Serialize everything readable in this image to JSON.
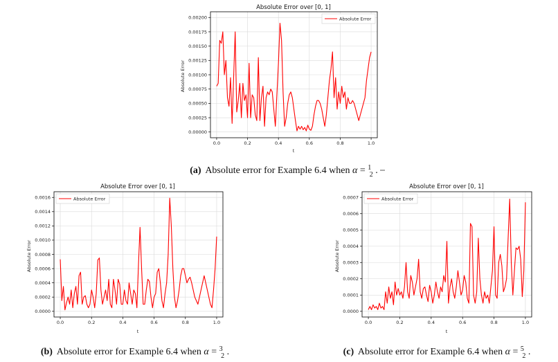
{
  "chart_data": [
    {
      "type": "line",
      "title": "Absolute Error over [0, 1]",
      "xlabel": "t",
      "ylabel": "Absolute Error",
      "xlim": [
        -0.04,
        1.04
      ],
      "ylim": [
        -0.0001,
        0.0021
      ],
      "xticks": [
        0.0,
        0.2,
        0.4,
        0.6,
        0.8,
        1.0
      ],
      "xtick_labels": [
        "0.0",
        "0.2",
        "0.4",
        "0.6",
        "0.8",
        "1.0"
      ],
      "yticks": [
        0,
        0.00025,
        0.0005,
        0.00075,
        0.001,
        0.00125,
        0.0015,
        0.00175,
        0.002
      ],
      "ytick_labels": [
        "0.00000",
        "0.00025",
        "0.00050",
        "0.00075",
        "0.00100",
        "0.00125",
        "0.00150",
        "0.00175",
        "0.00200"
      ],
      "grid": true,
      "legend_position": "top-right",
      "color": "#ff0000",
      "series": [
        {
          "name": "Absolute Error",
          "x": [
            0.0,
            0.01,
            0.02,
            0.03,
            0.04,
            0.05,
            0.06,
            0.07,
            0.08,
            0.09,
            0.1,
            0.11,
            0.12,
            0.13,
            0.14,
            0.15,
            0.16,
            0.17,
            0.18,
            0.19,
            0.2,
            0.21,
            0.22,
            0.23,
            0.24,
            0.25,
            0.26,
            0.27,
            0.28,
            0.29,
            0.3,
            0.31,
            0.32,
            0.33,
            0.34,
            0.35,
            0.36,
            0.37,
            0.38,
            0.39,
            0.4,
            0.41,
            0.42,
            0.43,
            0.44,
            0.45,
            0.46,
            0.47,
            0.48,
            0.49,
            0.5,
            0.51,
            0.52,
            0.53,
            0.54,
            0.55,
            0.56,
            0.57,
            0.58,
            0.59,
            0.6,
            0.61,
            0.62,
            0.63,
            0.64,
            0.65,
            0.66,
            0.67,
            0.68,
            0.69,
            0.7,
            0.71,
            0.72,
            0.73,
            0.74,
            0.75,
            0.76,
            0.77,
            0.78,
            0.79,
            0.8,
            0.81,
            0.82,
            0.83,
            0.84,
            0.85,
            0.86,
            0.87,
            0.88,
            0.89,
            0.9,
            0.91,
            0.92,
            0.93,
            0.94,
            0.95,
            0.96,
            0.97,
            0.98,
            0.99,
            1.0
          ],
          "y": [
            0.0008,
            0.00085,
            0.0016,
            0.00155,
            0.00175,
            0.001,
            0.00125,
            0.0006,
            0.00045,
            0.00095,
            0.00015,
            0.00095,
            0.00175,
            0.00035,
            0.00055,
            0.00085,
            0.00025,
            0.00085,
            0.00055,
            0.00065,
            0.00025,
            0.0012,
            0.00025,
            0.00065,
            0.0006,
            0.0003,
            0.0002,
            0.0013,
            0.0002,
            0.0006,
            0.0008,
            0.0001,
            0.0006,
            0.0007,
            0.00065,
            0.00075,
            0.0007,
            0.0004,
            0.0001,
            0.00065,
            0.0012,
            0.0019,
            0.0016,
            0.0007,
            0.0001,
            0.00025,
            0.0005,
            0.00065,
            0.0007,
            0.0006,
            0.0004,
            0.0002,
            2e-05,
            0.0001,
            5e-05,
            0.0001,
            4e-05,
            8e-05,
            2e-05,
            0.00012,
            5e-05,
            3e-05,
            0.0001,
            0.0003,
            0.00045,
            0.00055,
            0.00055,
            0.0005,
            0.0004,
            0.00025,
            0.0001,
            0.0003,
            0.0006,
            0.0009,
            0.0011,
            0.0014,
            0.0006,
            0.00095,
            0.0004,
            0.0007,
            0.0005,
            0.0008,
            0.0006,
            0.0007,
            0.0004,
            0.0006,
            0.0005,
            0.0005,
            0.00055,
            0.0005,
            0.0004,
            0.0003,
            0.0002,
            0.0003,
            0.0004,
            0.0005,
            0.0006,
            0.0009,
            0.0011,
            0.0013,
            0.0014
          ]
        }
      ]
    },
    {
      "type": "line",
      "title": "Absolute Error over [0, 1]",
      "xlabel": "t",
      "ylabel": "Absolute Error",
      "xlim": [
        -0.04,
        1.04
      ],
      "ylim": [
        -8e-05,
        0.00168
      ],
      "xticks": [
        0.0,
        0.2,
        0.4,
        0.6,
        0.8,
        1.0
      ],
      "xtick_labels": [
        "0.0",
        "0.2",
        "0.4",
        "0.6",
        "0.8",
        "1.0"
      ],
      "yticks": [
        0,
        0.0002,
        0.0004,
        0.0006,
        0.0008,
        0.001,
        0.0012,
        0.0014,
        0.0016
      ],
      "ytick_labels": [
        "0.0000",
        "0.0002",
        "0.0004",
        "0.0006",
        "0.0008",
        "0.0010",
        "0.0012",
        "0.0014",
        "0.0016"
      ],
      "grid": true,
      "legend_position": "top-left",
      "color": "#ff0000",
      "series": [
        {
          "name": "Absolute Error",
          "x": [
            0.0,
            0.01,
            0.02,
            0.03,
            0.04,
            0.05,
            0.06,
            0.07,
            0.08,
            0.09,
            0.1,
            0.11,
            0.12,
            0.13,
            0.14,
            0.15,
            0.16,
            0.17,
            0.18,
            0.19,
            0.2,
            0.21,
            0.22,
            0.23,
            0.24,
            0.25,
            0.26,
            0.27,
            0.28,
            0.29,
            0.3,
            0.31,
            0.32,
            0.33,
            0.34,
            0.35,
            0.36,
            0.37,
            0.38,
            0.39,
            0.4,
            0.41,
            0.42,
            0.43,
            0.44,
            0.45,
            0.46,
            0.47,
            0.48,
            0.49,
            0.5,
            0.51,
            0.52,
            0.53,
            0.54,
            0.55,
            0.56,
            0.57,
            0.58,
            0.59,
            0.6,
            0.61,
            0.62,
            0.63,
            0.64,
            0.65,
            0.66,
            0.67,
            0.68,
            0.69,
            0.7,
            0.71,
            0.72,
            0.73,
            0.74,
            0.75,
            0.76,
            0.77,
            0.78,
            0.79,
            0.8,
            0.81,
            0.82,
            0.83,
            0.84,
            0.85,
            0.86,
            0.87,
            0.88,
            0.89,
            0.9,
            0.91,
            0.92,
            0.93,
            0.94,
            0.95,
            0.96,
            0.97,
            0.98,
            0.99,
            1.0
          ],
          "y": [
            0.00073,
            0.00015,
            0.00035,
            2e-05,
            0.00012,
            0.0002,
            0.0001,
            0.0003,
            5e-05,
            0.00025,
            0.00035,
            0.0001,
            0.0005,
            0.00055,
            0.0001,
            0.0002,
            0.00022,
            0.0001,
            5e-05,
            0.0001,
            0.0003,
            0.0002,
            5e-05,
            0.00025,
            0.00072,
            0.00075,
            0.0003,
            0.0001,
            0.0002,
            0.0003,
            0.00015,
            0.00045,
            0.0001,
            5e-05,
            0.00045,
            0.0003,
            0.0001,
            0.00045,
            0.00038,
            0.0001,
            0.0001,
            0.0003,
            0.00015,
            0.0001,
            0.0004,
            0.00025,
            0.0001,
            0.0003,
            0.00025,
            5e-05,
            0.00065,
            0.00118,
            0.0006,
            0.0001,
            0.0001,
            0.0003,
            0.00045,
            0.00042,
            0.0002,
            5e-05,
            0.0002,
            0.00025,
            0.00055,
            0.0006,
            0.0004,
            0.00015,
            5e-05,
            0.00025,
            0.0004,
            0.0008,
            0.00159,
            0.0012,
            0.0006,
            0.0002,
            5e-05,
            0.00015,
            0.0003,
            0.0005,
            0.0006,
            0.0006,
            0.0005,
            0.0004,
            0.00045,
            0.00048,
            0.0004,
            0.0003,
            0.0002,
            0.00015,
            0.0001,
            0.0002,
            0.0003,
            0.0004,
            0.0005,
            0.0004,
            0.0003,
            0.0002,
            0.0001,
            5e-05,
            0.0003,
            0.0006,
            0.00105
          ]
        }
      ]
    },
    {
      "type": "line",
      "title": "Absolute Error over [0, 1]",
      "xlabel": "t",
      "ylabel": "Absolute Error",
      "xlim": [
        -0.04,
        1.04
      ],
      "ylim": [
        -3.5e-05,
        0.000735
      ],
      "xticks": [
        0.0,
        0.2,
        0.4,
        0.6,
        0.8,
        1.0
      ],
      "xtick_labels": [
        "0.0",
        "0.2",
        "0.4",
        "0.6",
        "0.8",
        "1.0"
      ],
      "yticks": [
        0,
        0.0001,
        0.0002,
        0.0003,
        0.0004,
        0.0005,
        0.0006,
        0.0007
      ],
      "ytick_labels": [
        "0.0000",
        "0.0001",
        "0.0002",
        "0.0003",
        "0.0004",
        "0.0005",
        "0.0006",
        "0.0007"
      ],
      "grid": true,
      "legend_position": "top-left",
      "color": "#ff0000",
      "series": [
        {
          "name": "Absolute Error",
          "x": [
            0.0,
            0.01,
            0.02,
            0.03,
            0.04,
            0.05,
            0.06,
            0.07,
            0.08,
            0.09,
            0.1,
            0.11,
            0.12,
            0.13,
            0.14,
            0.15,
            0.16,
            0.17,
            0.18,
            0.19,
            0.2,
            0.21,
            0.22,
            0.23,
            0.24,
            0.25,
            0.26,
            0.27,
            0.28,
            0.29,
            0.3,
            0.31,
            0.32,
            0.33,
            0.34,
            0.35,
            0.36,
            0.37,
            0.38,
            0.39,
            0.4,
            0.41,
            0.42,
            0.43,
            0.44,
            0.45,
            0.46,
            0.47,
            0.48,
            0.49,
            0.5,
            0.51,
            0.52,
            0.53,
            0.54,
            0.55,
            0.56,
            0.57,
            0.58,
            0.59,
            0.6,
            0.61,
            0.62,
            0.63,
            0.64,
            0.65,
            0.66,
            0.67,
            0.68,
            0.69,
            0.7,
            0.71,
            0.72,
            0.73,
            0.74,
            0.75,
            0.76,
            0.77,
            0.78,
            0.79,
            0.8,
            0.81,
            0.82,
            0.83,
            0.84,
            0.85,
            0.86,
            0.87,
            0.88,
            0.89,
            0.9,
            0.91,
            0.92,
            0.93,
            0.94,
            0.95,
            0.96,
            0.97,
            0.98,
            0.99,
            1.0
          ],
          "y": [
            1e-05,
            3e-05,
            1e-05,
            4e-05,
            2e-05,
            3e-05,
            1e-05,
            5e-05,
            2e-05,
            3e-05,
            1e-05,
            0.00012,
            5e-05,
            0.00015,
            8e-05,
            0.00012,
            4e-05,
            0.00018,
            0.0001,
            0.00014,
            0.0001,
            0.00012,
            8e-05,
            0.00015,
            0.0003,
            0.00012,
            8e-05,
            0.00022,
            0.00018,
            0.0001,
            0.00015,
            0.0002,
            0.00032,
            0.00012,
            8e-05,
            0.00014,
            0.00015,
            0.0001,
            6e-05,
            0.00016,
            0.00012,
            5e-05,
            0.0001,
            0.00018,
            0.00012,
            8e-05,
            0.00015,
            0.00012,
            0.00022,
            0.00018,
            0.00043,
            5e-05,
            0.00015,
            0.0002,
            0.00012,
            8e-05,
            0.00015,
            0.00025,
            0.00018,
            0.0001,
            0.00013,
            0.00022,
            0.00018,
            8e-05,
            5e-05,
            0.00054,
            0.00052,
            0.0001,
            5e-05,
            0.00012,
            0.00045,
            0.0002,
            0.0001,
            5e-05,
            0.00012,
            8e-05,
            0.0001,
            5e-05,
            0.00015,
            0.00025,
            0.00052,
            0.0001,
            8e-05,
            0.0003,
            0.00035,
            0.00028,
            0.00012,
            0.00015,
            0.0002,
            0.00045,
            0.00069,
            0.0003,
            0.0001,
            0.00025,
            0.00039,
            0.00038,
            0.0004,
            0.00032,
            9e-05,
            0.00025,
            0.00067
          ]
        }
      ]
    }
  ],
  "captions": [
    {
      "label": "(a)",
      "text": "Absolute error for Example 6.4 when ",
      "var": "α",
      "eq": " = ",
      "num": "1",
      "den": "2",
      "tail": " ."
    },
    {
      "label": "(b)",
      "text": "Absolute error for Example 6.4 when ",
      "var": "α",
      "eq": " = ",
      "num": "3",
      "den": "2",
      "tail": "."
    },
    {
      "label": "(c)",
      "text": "Absolute error for Example 6.4 when ",
      "var": "α",
      "eq": " = ",
      "num": "5",
      "den": "2",
      "tail": " ."
    }
  ]
}
